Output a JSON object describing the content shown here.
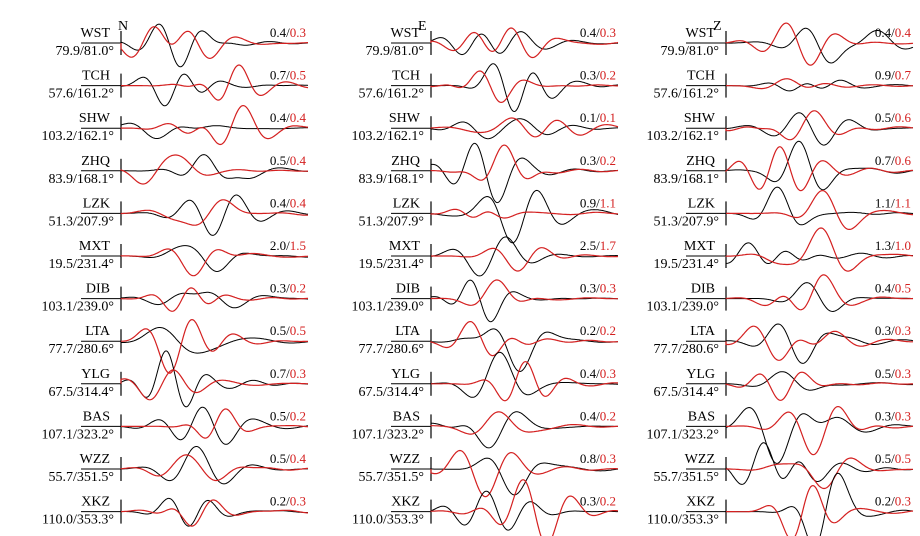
{
  "components": [
    {
      "label": "N",
      "stations": [
        {
          "name": "WST",
          "dist_az": "79.9/81.0°",
          "obs": "0.4",
          "syn": "0.3"
        },
        {
          "name": "TCH",
          "dist_az": "57.6/161.2°",
          "obs": "0.7",
          "syn": "0.5"
        },
        {
          "name": "SHW",
          "dist_az": "103.2/162.1°",
          "obs": "0.4",
          "syn": "0.4"
        },
        {
          "name": "ZHQ",
          "dist_az": "83.9/168.1°",
          "obs": "0.5",
          "syn": "0.4"
        },
        {
          "name": "LZK",
          "dist_az": "51.3/207.9°",
          "obs": "0.4",
          "syn": "0.4"
        },
        {
          "name": "MXT",
          "dist_az": "19.5/231.4°",
          "obs": "2.0",
          "syn": "1.5"
        },
        {
          "name": "DIB",
          "dist_az": "103.1/239.0°",
          "obs": "0.3",
          "syn": "0.2"
        },
        {
          "name": "LTA",
          "dist_az": "77.7/280.6°",
          "obs": "0.5",
          "syn": "0.5"
        },
        {
          "name": "YLG",
          "dist_az": "67.5/314.4°",
          "obs": "0.7",
          "syn": "0.3"
        },
        {
          "name": "BAS",
          "dist_az": "107.1/323.2°",
          "obs": "0.5",
          "syn": "0.2"
        },
        {
          "name": "WZZ",
          "dist_az": "55.7/351.5°",
          "obs": "0.5",
          "syn": "0.4"
        },
        {
          "name": "XKZ",
          "dist_az": "110.0/353.3°",
          "obs": "0.2",
          "syn": "0.3"
        }
      ]
    },
    {
      "label": "E",
      "stations": [
        {
          "name": "WST",
          "dist_az": "79.9/81.0°",
          "obs": "0.4",
          "syn": "0.3"
        },
        {
          "name": "TCH",
          "dist_az": "57.6/161.2°",
          "obs": "0.3",
          "syn": "0.2"
        },
        {
          "name": "SHW",
          "dist_az": "103.2/162.1°",
          "obs": "0.1",
          "syn": "0.1"
        },
        {
          "name": "ZHQ",
          "dist_az": "83.9/168.1°",
          "obs": "0.3",
          "syn": "0.2"
        },
        {
          "name": "LZK",
          "dist_az": "51.3/207.9°",
          "obs": "0.9",
          "syn": "1.1"
        },
        {
          "name": "MXT",
          "dist_az": "19.5/231.4°",
          "obs": "2.5",
          "syn": "1.7"
        },
        {
          "name": "DIB",
          "dist_az": "103.1/239.0°",
          "obs": "0.3",
          "syn": "0.3"
        },
        {
          "name": "LTA",
          "dist_az": "77.7/280.6°",
          "obs": "0.2",
          "syn": "0.2"
        },
        {
          "name": "YLG",
          "dist_az": "67.5/314.4°",
          "obs": "0.4",
          "syn": "0.3"
        },
        {
          "name": "BAS",
          "dist_az": "107.1/323.2°",
          "obs": "0.4",
          "syn": "0.2"
        },
        {
          "name": "WZZ",
          "dist_az": "55.7/351.5°",
          "obs": "0.8",
          "syn": "0.3"
        },
        {
          "name": "XKZ",
          "dist_az": "110.0/353.3°",
          "obs": "0.3",
          "syn": "0.2"
        }
      ]
    },
    {
      "label": "Z",
      "stations": [
        {
          "name": "WST",
          "dist_az": "79.9/81.0°",
          "obs": "0.4",
          "syn": "0.4"
        },
        {
          "name": "TCH",
          "dist_az": "57.6/161.2°",
          "obs": "0.9",
          "syn": "0.7"
        },
        {
          "name": "SHW",
          "dist_az": "103.2/162.1°",
          "obs": "0.5",
          "syn": "0.6"
        },
        {
          "name": "ZHQ",
          "dist_az": "83.9/168.1°",
          "obs": "0.7",
          "syn": "0.6"
        },
        {
          "name": "LZK",
          "dist_az": "51.3/207.9°",
          "obs": "1.1",
          "syn": "1.1"
        },
        {
          "name": "MXT",
          "dist_az": "19.5/231.4°",
          "obs": "1.3",
          "syn": "1.0"
        },
        {
          "name": "DIB",
          "dist_az": "103.1/239.0°",
          "obs": "0.4",
          "syn": "0.5"
        },
        {
          "name": "LTA",
          "dist_az": "77.7/280.6°",
          "obs": "0.3",
          "syn": "0.3"
        },
        {
          "name": "YLG",
          "dist_az": "67.5/314.4°",
          "obs": "0.5",
          "syn": "0.3"
        },
        {
          "name": "BAS",
          "dist_az": "107.1/323.2°",
          "obs": "0.3",
          "syn": "0.3"
        },
        {
          "name": "WZZ",
          "dist_az": "55.7/351.5°",
          "obs": "0.5",
          "syn": "0.5"
        },
        {
          "name": "XKZ",
          "dist_az": "110.0/353.3°",
          "obs": "0.2",
          "syn": "0.3"
        }
      ]
    }
  ],
  "colors": {
    "observed": "#000000",
    "synthetic": "#d42020",
    "amp_separator": "#000000"
  }
}
